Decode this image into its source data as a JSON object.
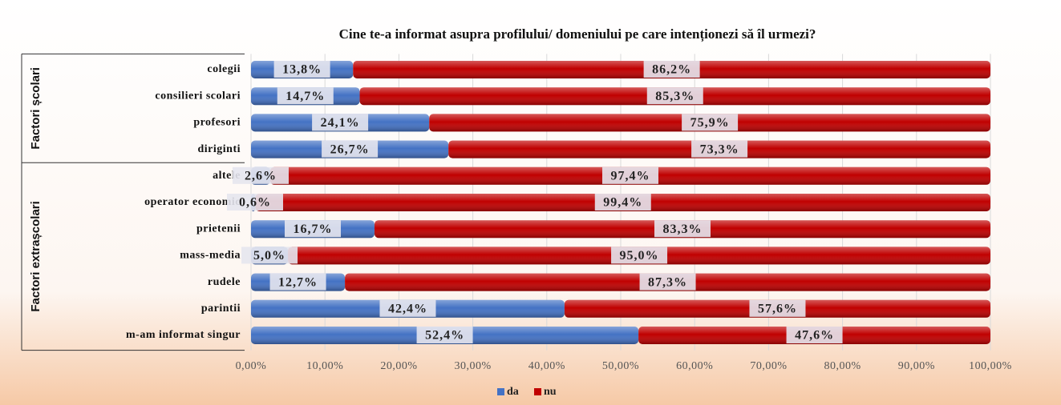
{
  "chart_data": {
    "type": "stacked-bar-horizontal",
    "title": "Cine te-a informat asupra profilului/ domeniului pe care intenționezi să îl urmezi?",
    "categories": [
      "colegii",
      "consilieri scolari",
      "profesori",
      "diriginti",
      "altele",
      "operator economic",
      "prietenii",
      "mass-media",
      "rudele",
      "parintii",
      "m-am informat singur"
    ],
    "groups": [
      {
        "label": "Factori școlari",
        "count": 4
      },
      {
        "label": "Factori extrașcolari",
        "count": 7
      }
    ],
    "series": [
      {
        "name": "da",
        "color": "#4472c4",
        "values": [
          13.8,
          14.7,
          24.1,
          26.7,
          2.6,
          0.6,
          16.7,
          5.0,
          12.7,
          42.4,
          52.4
        ],
        "value_labels": [
          "13,8%",
          "14,7%",
          "24,1%",
          "26,7%",
          "2,6%",
          "0,6%",
          "16,7%",
          "5,0%",
          "12,7%",
          "42,4%",
          "52,4%"
        ]
      },
      {
        "name": "nu",
        "color": "#c00000",
        "values": [
          86.2,
          85.3,
          75.9,
          73.3,
          97.4,
          99.4,
          83.3,
          95.0,
          87.3,
          57.6,
          47.6
        ],
        "value_labels": [
          "86,2%",
          "85,3%",
          "75,9%",
          "73,3%",
          "97,4%",
          "99,4%",
          "83,3%",
          "95,0%",
          "87,3%",
          "57,6%",
          "47,6%"
        ]
      }
    ],
    "xlim": [
      0,
      100
    ],
    "xticks": [
      {
        "value": 0,
        "label": "0,00%"
      },
      {
        "value": 10,
        "label": "10,00%"
      },
      {
        "value": 20,
        "label": "20,00%"
      },
      {
        "value": 30,
        "label": "30,00%"
      },
      {
        "value": 40,
        "label": "40,00%"
      },
      {
        "value": 50,
        "label": "50,00%"
      },
      {
        "value": 60,
        "label": "60,00%"
      },
      {
        "value": 70,
        "label": "70,00%"
      },
      {
        "value": 80,
        "label": "80,00%"
      },
      {
        "value": 90,
        "label": "90,00%"
      },
      {
        "value": 100,
        "label": "100,00%"
      }
    ],
    "grid": true,
    "legend": "bottom"
  }
}
